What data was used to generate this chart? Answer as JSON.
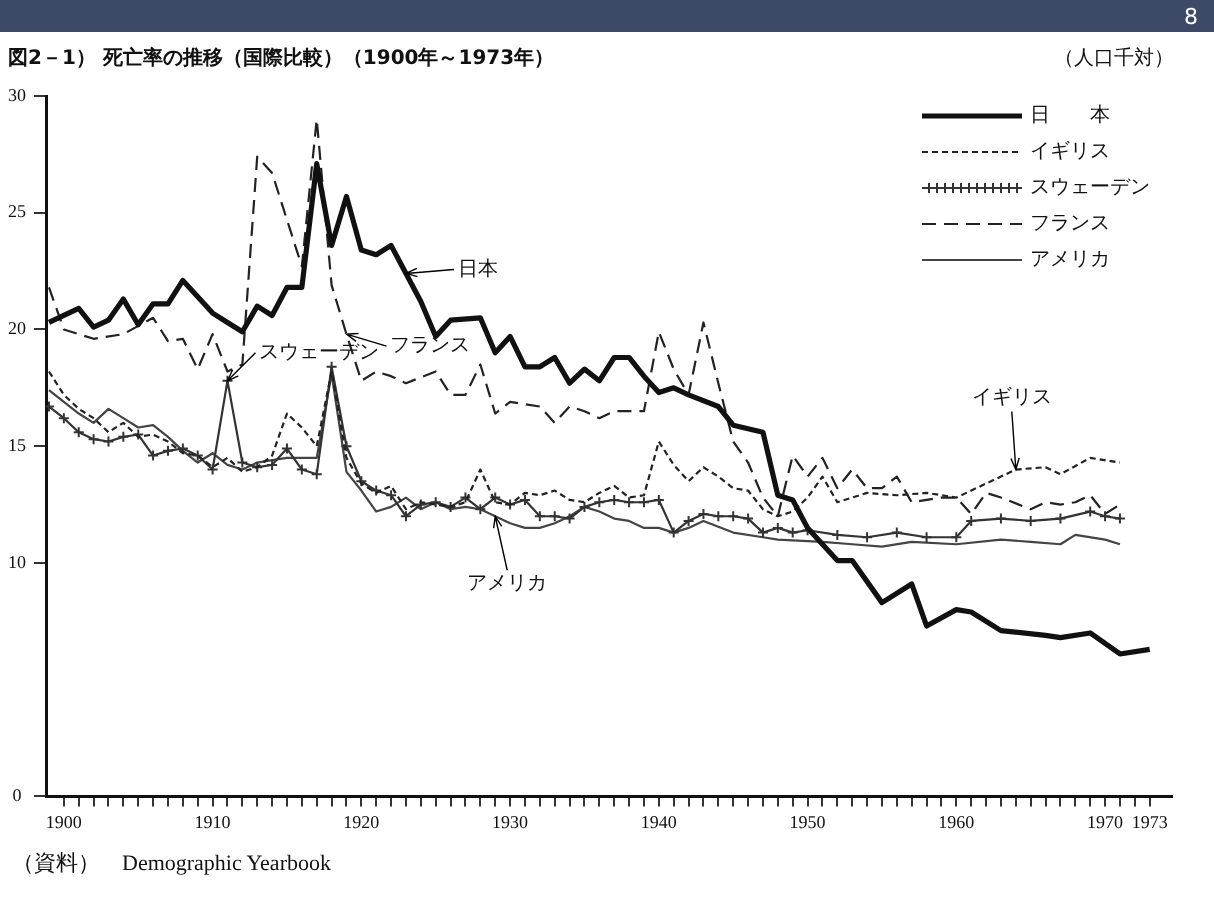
{
  "chart_data": {
    "type": "line",
    "title": "図2－1） 死亡率の推移（国際比較）（1900年～1973年）",
    "ylabel": "（人口千対）",
    "xlim": [
      1898.8,
      1974.5
    ],
    "xticks": [
      1900,
      {
        "value": 1901,
        "label": null
      },
      {
        "value": 1902,
        "label": null
      },
      {
        "value": 1903,
        "label": null
      },
      {
        "value": 1904,
        "label": null
      },
      {
        "value": 1905,
        "label": null
      },
      {
        "value": 1906,
        "label": null
      },
      {
        "value": 1907,
        "label": null
      },
      {
        "value": 1908,
        "label": null
      },
      {
        "value": 1909,
        "label": null
      },
      1910,
      {
        "value": 1911,
        "label": null
      },
      {
        "value": 1912,
        "label": null
      },
      {
        "value": 1913,
        "label": null
      },
      {
        "value": 1914,
        "label": null
      },
      {
        "value": 1915,
        "label": null
      },
      {
        "value": 1916,
        "label": null
      },
      {
        "value": 1917,
        "label": null
      },
      {
        "value": 1918,
        "label": null
      },
      {
        "value": 1919,
        "label": null
      },
      1920,
      {
        "value": 1921,
        "label": null
      },
      {
        "value": 1922,
        "label": null
      },
      {
        "value": 1923,
        "label": null
      },
      {
        "value": 1924,
        "label": null
      },
      {
        "value": 1925,
        "label": null
      },
      {
        "value": 1926,
        "label": null
      },
      {
        "value": 1927,
        "label": null
      },
      {
        "value": 1928,
        "label": null
      },
      {
        "value": 1929,
        "label": null
      },
      1930,
      {
        "value": 1931,
        "label": null
      },
      {
        "value": 1932,
        "label": null
      },
      {
        "value": 1933,
        "label": null
      },
      {
        "value": 1934,
        "label": null
      },
      {
        "value": 1935,
        "label": null
      },
      {
        "value": 1936,
        "label": null
      },
      {
        "value": 1937,
        "label": null
      },
      {
        "value": 1938,
        "label": null
      },
      {
        "value": 1939,
        "label": null
      },
      1940,
      {
        "value": 1941,
        "label": null
      },
      {
        "value": 1942,
        "label": null
      },
      {
        "value": 1943,
        "label": null
      },
      {
        "value": 1944,
        "label": null
      },
      {
        "value": 1945,
        "label": null
      },
      {
        "value": 1946,
        "label": null
      },
      {
        "value": 1947,
        "label": null
      },
      {
        "value": 1948,
        "label": null
      },
      {
        "value": 1949,
        "label": null
      },
      1950,
      {
        "value": 1951,
        "label": null
      },
      {
        "value": 1952,
        "label": null
      },
      {
        "value": 1953,
        "label": null
      },
      {
        "value": 1954,
        "label": null
      },
      {
        "value": 1955,
        "label": null
      },
      {
        "value": 1956,
        "label": null
      },
      {
        "value": 1957,
        "label": null
      },
      {
        "value": 1958,
        "label": null
      },
      {
        "value": 1959,
        "label": null
      },
      1960,
      {
        "value": 1961,
        "label": null
      },
      {
        "value": 1962,
        "label": null
      },
      {
        "value": 1963,
        "label": null
      },
      {
        "value": 1964,
        "label": null
      },
      {
        "value": 1965,
        "label": null
      },
      {
        "value": 1966,
        "label": null
      },
      {
        "value": 1967,
        "label": null
      },
      {
        "value": 1968,
        "label": null
      },
      {
        "value": 1969,
        "label": null
      },
      1970,
      {
        "value": 1971,
        "label": null
      },
      {
        "value": 1972,
        "label": null
      },
      1973
    ],
    "ylim": [
      0,
      30
    ],
    "yticks": [
      0,
      10,
      15,
      20,
      25,
      30
    ],
    "grid": false,
    "legend": "top right",
    "series": [
      {
        "name": "日　　本",
        "color": "#111111",
        "line_style": "solid",
        "marker": "none",
        "x": [
          1899,
          1901,
          1902,
          1903,
          1904,
          1905,
          1906,
          1907,
          1908,
          1909,
          1910,
          1911,
          1912,
          1913,
          1914,
          1915,
          1916,
          1917,
          1918,
          1919,
          1920,
          1921,
          1922,
          1923,
          1924,
          1925,
          1926,
          1928,
          1929,
          1930,
          1931,
          1932,
          1933,
          1934,
          1935,
          1936,
          1937,
          1938,
          1939,
          1940,
          1941,
          1942,
          1944,
          1945,
          1947,
          1948,
          1949,
          1950,
          1952,
          1953,
          1955,
          1957,
          1958,
          1960,
          1961,
          1963,
          1966,
          1967,
          1969,
          1971,
          1973
        ],
        "values": [
          20.3,
          20.9,
          20.1,
          20.4,
          21.3,
          20.2,
          21.1,
          21.1,
          22.1,
          21.4,
          20.7,
          20.3,
          19.9,
          21.0,
          20.6,
          21.8,
          21.8,
          27.1,
          23.6,
          25.7,
          23.4,
          23.2,
          23.6,
          22.4,
          21.2,
          19.7,
          20.4,
          20.5,
          19.0,
          19.7,
          18.4,
          18.4,
          18.8,
          17.7,
          18.3,
          17.8,
          18.8,
          18.8,
          18.0,
          17.3,
          17.5,
          17.2,
          16.7,
          15.9,
          15.6,
          12.9,
          12.7,
          11.5,
          10.1,
          10.1,
          8.3,
          9.1,
          7.3,
          8.0,
          7.9,
          7.1,
          6.9,
          6.8,
          7.0,
          6.1,
          6.3
        ]
      },
      {
        "name": "イギリス",
        "color": "#222222",
        "line_style": "dotted",
        "marker": "none",
        "x": [
          1899,
          1900,
          1901,
          1902,
          1903,
          1904,
          1905,
          1906,
          1907,
          1908,
          1909,
          1910,
          1911,
          1912,
          1913,
          1914,
          1915,
          1916,
          1917,
          1918,
          1919,
          1920,
          1921,
          1922,
          1923,
          1924,
          1925,
          1926,
          1927,
          1928,
          1929,
          1930,
          1931,
          1932,
          1933,
          1934,
          1935,
          1936,
          1937,
          1938,
          1939,
          1940,
          1941,
          1942,
          1943,
          1944,
          1945,
          1946,
          1947,
          1948,
          1949,
          1950,
          1951,
          1952,
          1953,
          1954,
          1956,
          1958,
          1960,
          1962,
          1964,
          1966,
          1967,
          1969,
          1971
        ],
        "values": [
          18.2,
          17.2,
          16.6,
          16.2,
          15.6,
          16.0,
          15.4,
          15.5,
          15.2,
          14.7,
          14.6,
          14.1,
          14.5,
          13.9,
          14.1,
          14.6,
          16.4,
          15.8,
          15.0,
          18.2,
          14.5,
          13.4,
          13.0,
          13.3,
          12.3,
          12.6,
          12.5,
          12.4,
          12.6,
          14.0,
          12.6,
          12.5,
          13.0,
          12.9,
          13.1,
          12.7,
          12.6,
          13.0,
          13.3,
          12.8,
          12.9,
          15.2,
          14.2,
          13.5,
          14.1,
          13.7,
          13.2,
          13.1,
          12.3,
          12.0,
          12.2,
          12.8,
          13.7,
          12.6,
          12.8,
          13.0,
          12.9,
          13.0,
          12.8,
          13.4,
          14.0,
          14.1,
          13.8,
          14.5,
          14.3
        ]
      },
      {
        "name": "スウェーデン",
        "color": "#333333",
        "line_style": "solid",
        "marker": "cross",
        "x": [
          1899,
          1900,
          1901,
          1902,
          1903,
          1904,
          1905,
          1906,
          1907,
          1908,
          1909,
          1910,
          1911,
          1912,
          1913,
          1914,
          1915,
          1916,
          1917,
          1918,
          1919,
          1920,
          1921,
          1922,
          1923,
          1924,
          1925,
          1926,
          1927,
          1928,
          1929,
          1930,
          1931,
          1932,
          1933,
          1934,
          1935,
          1936,
          1937,
          1938,
          1939,
          1940,
          1941,
          1942,
          1943,
          1944,
          1945,
          1946,
          1947,
          1948,
          1949,
          1950,
          1952,
          1954,
          1956,
          1958,
          1960,
          1961,
          1963,
          1965,
          1967,
          1969,
          1970,
          1971
        ],
        "values": [
          16.7,
          16.2,
          15.6,
          15.3,
          15.2,
          15.4,
          15.5,
          14.6,
          14.8,
          14.9,
          14.6,
          14.0,
          17.8,
          14.3,
          14.1,
          14.2,
          14.9,
          14.0,
          13.8,
          18.4,
          15.0,
          13.5,
          13.1,
          12.9,
          12.0,
          12.5,
          12.6,
          12.4,
          12.8,
          12.3,
          12.8,
          12.5,
          12.7,
          12.0,
          12.0,
          11.9,
          12.4,
          12.6,
          12.7,
          12.6,
          12.6,
          12.7,
          11.3,
          11.8,
          12.1,
          12.0,
          12.0,
          11.9,
          11.3,
          11.5,
          11.3,
          11.4,
          11.2,
          11.1,
          11.3,
          11.1,
          11.1,
          11.8,
          11.9,
          11.8,
          11.9,
          12.2,
          12.0,
          11.9
        ]
      },
      {
        "name": "フランス",
        "color": "#222222",
        "line_style": "dashed",
        "marker": "none",
        "x": [
          1899,
          1900,
          1902,
          1904,
          1906,
          1907,
          1908,
          1909,
          1910,
          1911,
          1912,
          1913,
          1914,
          1916,
          1917,
          1918,
          1919,
          1920,
          1921,
          1922,
          1923,
          1925,
          1926,
          1927,
          1928,
          1929,
          1930,
          1932,
          1933,
          1934,
          1935,
          1936,
          1937,
          1938,
          1939,
          1940,
          1941,
          1942,
          1943,
          1944,
          1945,
          1946,
          1947,
          1948,
          1949,
          1950,
          1951,
          1952,
          1953,
          1954,
          1955,
          1956,
          1957,
          1959,
          1960,
          1961,
          1962,
          1963,
          1965,
          1966,
          1967,
          1968,
          1969,
          1970,
          1971
        ],
        "values": [
          21.8,
          20.0,
          19.6,
          19.8,
          20.5,
          19.5,
          19.6,
          18.3,
          19.8,
          18.2,
          18.5,
          27.4,
          26.7,
          22.7,
          29.0,
          21.9,
          19.8,
          17.8,
          18.2,
          18.0,
          17.7,
          18.2,
          17.2,
          17.2,
          18.5,
          16.4,
          16.9,
          16.7,
          16.0,
          16.7,
          16.5,
          16.2,
          16.5,
          16.5,
          16.5,
          19.9,
          18.3,
          17.2,
          20.3,
          17.7,
          15.2,
          14.3,
          12.8,
          12.0,
          14.6,
          13.7,
          14.5,
          13.2,
          14.0,
          13.2,
          13.2,
          13.7,
          12.6,
          12.8,
          12.8,
          12.1,
          13.0,
          12.8,
          12.3,
          12.6,
          12.5,
          12.6,
          12.9,
          12.1,
          12.5
        ]
      },
      {
        "name": "アメリカ",
        "color": "#444444",
        "line_style": "solid",
        "marker": "none",
        "x": [
          1899,
          1900,
          1901,
          1902,
          1903,
          1904,
          1905,
          1906,
          1907,
          1908,
          1909,
          1910,
          1911,
          1912,
          1913,
          1914,
          1915,
          1916,
          1917,
          1918,
          1919,
          1920,
          1921,
          1922,
          1923,
          1924,
          1925,
          1926,
          1927,
          1928,
          1929,
          1930,
          1931,
          1932,
          1933,
          1934,
          1935,
          1936,
          1937,
          1938,
          1939,
          1940,
          1941,
          1942,
          1943,
          1945,
          1947,
          1948,
          1951,
          1953,
          1955,
          1957,
          1960,
          1963,
          1965,
          1967,
          1968,
          1970,
          1971
        ],
        "values": [
          17.4,
          16.9,
          16.4,
          16.0,
          16.6,
          16.2,
          15.8,
          15.9,
          15.4,
          14.8,
          14.3,
          14.7,
          14.2,
          14.0,
          14.3,
          14.4,
          14.5,
          14.5,
          14.5,
          18.1,
          13.9,
          13.1,
          12.2,
          12.4,
          12.8,
          12.3,
          12.6,
          12.3,
          12.4,
          12.3,
          12.0,
          11.7,
          11.5,
          11.5,
          11.7,
          12.0,
          12.4,
          12.2,
          11.9,
          11.8,
          11.5,
          11.5,
          11.3,
          11.5,
          11.8,
          11.3,
          11.1,
          11.0,
          10.9,
          10.8,
          10.7,
          10.9,
          10.8,
          11.0,
          10.9,
          10.8,
          11.2,
          11.0,
          10.8
        ]
      }
    ],
    "annotations": [
      {
        "text": "日本",
        "x": 1923,
        "y": 22.4
      },
      {
        "text": "フランス",
        "x": 1919,
        "y": 19.8
      },
      {
        "text": "スウェーデン",
        "x": 1911,
        "y": 17.8
      },
      {
        "text": "イギリス",
        "x": 1964,
        "y": 14.0
      },
      {
        "text": "アメリカ",
        "x": 1929,
        "y": 12.0
      },
      "（資料）　Demographic Yearbook",
      "8"
    ]
  }
}
